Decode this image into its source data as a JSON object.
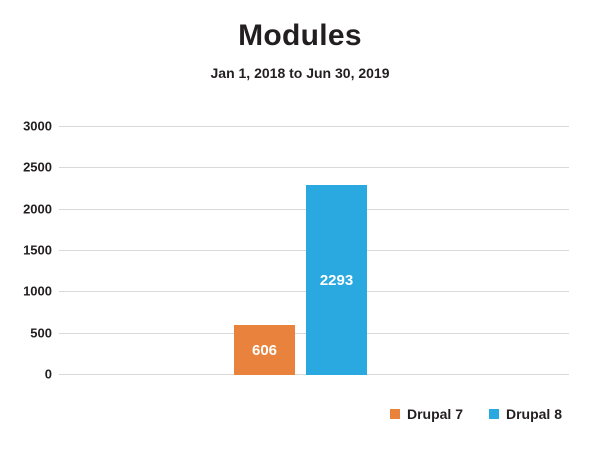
{
  "chart_data": {
    "type": "bar",
    "title": "Modules",
    "subtitle": "Jan 1, 2018 to Jun 30, 2019",
    "categories": [
      "Drupal 7",
      "Drupal 8"
    ],
    "values": [
      606,
      2293
    ],
    "bar_colors": [
      "#e8823c",
      "#2aa9e0"
    ],
    "value_label_color": "#ffffff",
    "xlabel": "",
    "ylabel": "",
    "ylim": [
      0,
      3000
    ],
    "yticks": [
      0,
      500,
      1000,
      1500,
      2000,
      2500,
      3000
    ],
    "grid": true,
    "gridline_color": "#d9d9d9",
    "text_color": "#231f20",
    "legend": {
      "position": "bottom-right",
      "items": [
        {
          "label": "Drupal 7",
          "color": "#e8823c"
        },
        {
          "label": "Drupal 8",
          "color": "#2aa9e0"
        }
      ]
    }
  }
}
